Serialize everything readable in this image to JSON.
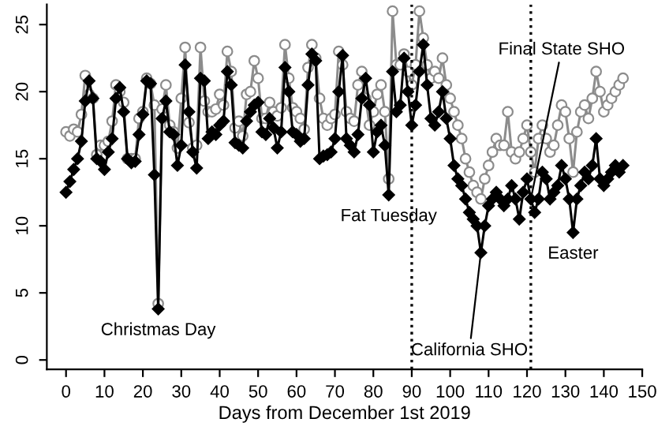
{
  "chart_data": {
    "type": "line",
    "xlabel": "Days from December 1st 2019",
    "xlim": [
      -5,
      150
    ],
    "xticks": [
      0,
      10,
      20,
      30,
      40,
      50,
      60,
      70,
      80,
      90,
      100,
      110,
      120,
      130,
      140,
      150
    ],
    "ylim": [
      -0.7,
      26.5
    ],
    "yticks": [
      0,
      5,
      10,
      15,
      20,
      25
    ],
    "grid": false,
    "legend": false,
    "line_style": "solid",
    "series": [
      {
        "color": "#8c8c8c",
        "marker": "circle",
        "x": [
          0,
          1,
          2,
          3,
          4,
          5,
          6,
          7,
          8,
          9,
          10,
          11,
          12,
          13,
          14,
          15,
          16,
          17,
          18,
          19,
          20,
          21,
          22,
          23,
          24,
          25,
          26,
          27,
          28,
          29,
          30,
          31,
          32,
          33,
          34,
          35,
          36,
          37,
          38,
          39,
          40,
          41,
          42,
          43,
          44,
          45,
          46,
          47,
          48,
          49,
          50,
          51,
          52,
          53,
          54,
          55,
          56,
          57,
          58,
          59,
          60,
          61,
          62,
          63,
          64,
          65,
          66,
          67,
          68,
          69,
          70,
          71,
          72,
          73,
          74,
          75,
          76,
          77,
          78,
          79,
          80,
          81,
          82,
          83,
          84,
          85,
          86,
          87,
          88,
          89,
          90,
          91,
          92,
          93,
          94,
          95,
          96,
          97,
          98,
          99,
          100,
          101,
          102,
          103,
          104,
          105,
          106,
          107,
          108,
          109,
          110,
          111,
          112,
          113,
          114,
          115,
          116,
          117,
          118,
          119,
          120,
          121,
          122,
          123,
          124,
          125,
          126,
          127,
          128,
          129,
          130,
          131,
          132,
          133,
          134,
          135,
          136,
          137,
          138,
          139,
          140,
          141,
          142,
          143,
          144,
          145
        ],
        "values": [
          17.0,
          16.7,
          17.2,
          17.0,
          18.3,
          21.2,
          19.8,
          19.5,
          15.3,
          16.0,
          16.0,
          16.3,
          17.8,
          20.5,
          20.0,
          19.2,
          15.0,
          15.0,
          15.0,
          18.0,
          18.5,
          21.0,
          20.6,
          19.0,
          4.2,
          18.7,
          20.5,
          17.5,
          17.0,
          15.8,
          19.5,
          23.3,
          17.7,
          15.8,
          16.0,
          23.3,
          19.3,
          18.5,
          18.5,
          18.7,
          19.8,
          19.0,
          23.0,
          21.5,
          17.3,
          17.8,
          16.7,
          19.8,
          20.0,
          22.3,
          21.0,
          18.0,
          18.0,
          19.2,
          18.5,
          18.2,
          18.8,
          23.5,
          21.0,
          18.8,
          18.5,
          18.0,
          17.2,
          21.8,
          23.5,
          22.5,
          19.5,
          18.0,
          17.5,
          18.0,
          18.3,
          23.0,
          22.0,
          18.5,
          18.0,
          17.8,
          20.5,
          21.5,
          19.5,
          17.5,
          18.5,
          19.8,
          20.5,
          18.5,
          13.5,
          26.0,
          22.0,
          22.0,
          22.8,
          21.5,
          20.5,
          22.0,
          26.0,
          24.0,
          22.0,
          21.0,
          21.5,
          21.0,
          22.5,
          20.5,
          19.5,
          18.5,
          17.5,
          16.5,
          15.0,
          14.0,
          13.0,
          12.5,
          12.0,
          13.5,
          14.5,
          15.5,
          16.5,
          16.0,
          16.0,
          18.5,
          15.5,
          15.0,
          15.5,
          16.5,
          17.5,
          15.5,
          14.0,
          16.5,
          17.5,
          16.5,
          15.5,
          16.0,
          17.5,
          19.0,
          18.5,
          16.5,
          14.0,
          17.0,
          18.5,
          19.0,
          18.0,
          19.5,
          21.5,
          20.0,
          18.5,
          19.0,
          19.5,
          20.0,
          20.5,
          21.0
        ]
      },
      {
        "color": "#000000",
        "marker": "diamond",
        "x": [
          0,
          1,
          2,
          3,
          4,
          5,
          6,
          7,
          8,
          9,
          10,
          11,
          12,
          13,
          14,
          15,
          16,
          17,
          18,
          19,
          20,
          21,
          22,
          23,
          24,
          25,
          26,
          27,
          28,
          29,
          30,
          31,
          32,
          33,
          34,
          35,
          36,
          37,
          38,
          39,
          40,
          41,
          42,
          43,
          44,
          45,
          46,
          47,
          48,
          49,
          50,
          51,
          52,
          53,
          54,
          55,
          56,
          57,
          58,
          59,
          60,
          61,
          62,
          63,
          64,
          65,
          66,
          67,
          68,
          69,
          70,
          71,
          72,
          73,
          74,
          75,
          76,
          77,
          78,
          79,
          80,
          81,
          82,
          83,
          84,
          85,
          86,
          87,
          88,
          89,
          90,
          91,
          92,
          93,
          94,
          95,
          96,
          97,
          98,
          99,
          100,
          101,
          102,
          103,
          104,
          105,
          106,
          107,
          108,
          109,
          110,
          111,
          112,
          113,
          114,
          115,
          116,
          117,
          118,
          119,
          120,
          121,
          122,
          123,
          124,
          125,
          126,
          127,
          128,
          129,
          130,
          131,
          132,
          133,
          134,
          135,
          136,
          137,
          138,
          139,
          140,
          141,
          142,
          143,
          144,
          145
        ],
        "values": [
          12.5,
          13.3,
          14.2,
          15.0,
          16.3,
          19.3,
          20.8,
          19.5,
          15.0,
          14.8,
          14.2,
          15.5,
          16.5,
          19.5,
          20.3,
          18.5,
          15.0,
          14.7,
          14.8,
          16.8,
          18.3,
          20.8,
          20.6,
          13.8,
          3.8,
          18.0,
          19.3,
          17.0,
          16.8,
          14.5,
          16.0,
          22.0,
          18.5,
          15.5,
          14.3,
          21.0,
          20.8,
          16.5,
          17.0,
          16.8,
          17.5,
          17.8,
          21.5,
          20.5,
          16.2,
          16.0,
          15.8,
          17.8,
          18.5,
          19.0,
          19.2,
          17.0,
          16.8,
          18.0,
          17.3,
          15.8,
          17.0,
          21.8,
          20.0,
          17.0,
          16.8,
          16.3,
          16.5,
          20.5,
          22.8,
          22.3,
          15.0,
          15.2,
          15.3,
          15.5,
          16.5,
          20.0,
          22.7,
          16.5,
          16.0,
          15.5,
          16.8,
          19.5,
          21.0,
          19.0,
          15.5,
          17.0,
          17.5,
          16.0,
          12.3,
          21.5,
          18.5,
          19.0,
          22.5,
          20.0,
          17.5,
          19.0,
          21.5,
          23.5,
          20.5,
          18.0,
          17.5,
          18.5,
          20.0,
          18.0,
          16.5,
          14.5,
          13.5,
          13.0,
          12.0,
          11.0,
          10.5,
          10.0,
          8.0,
          10.0,
          11.5,
          12.0,
          12.5,
          12.0,
          11.5,
          12.0,
          13.0,
          12.0,
          10.5,
          12.5,
          13.5,
          12.0,
          11.0,
          12.0,
          14.0,
          13.5,
          12.0,
          12.5,
          13.0,
          14.5,
          13.5,
          12.0,
          9.5,
          12.0,
          13.0,
          14.0,
          13.5,
          14.5,
          16.5,
          13.5,
          13.0,
          13.5,
          14.0,
          14.5,
          14.0,
          14.5
        ]
      }
    ],
    "ref_lines": [
      {
        "axis": "x",
        "value": 90,
        "color": "#000000",
        "line_style": "dotted"
      },
      {
        "axis": "x",
        "value": 121,
        "color": "#000000",
        "line_style": "dotted"
      }
    ],
    "annotations": [
      {
        "text": "Christmas Day",
        "x": 24,
        "y": 3.8
      },
      {
        "text": "Fat Tuesday",
        "x": 84,
        "y": 12.3
      },
      {
        "text": "California SHO",
        "x": 108,
        "y": 8.0
      },
      {
        "text": "Final State SHO",
        "x": 121,
        "y": 12.0
      },
      {
        "text": "Easter",
        "x": 132,
        "y": 9.5
      }
    ]
  }
}
